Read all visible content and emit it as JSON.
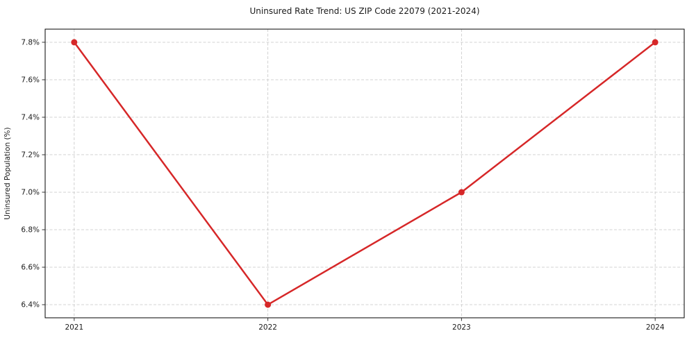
{
  "chart_data": {
    "type": "line",
    "title": "Uninsured Rate Trend: US ZIP Code 22079 (2021-2024)",
    "xlabel": "",
    "ylabel": "Uninsured Population (%)",
    "x": [
      2021,
      2022,
      2023,
      2024
    ],
    "values": [
      7.8,
      6.4,
      7.0,
      7.8
    ],
    "x_tick_labels": [
      "2021",
      "2022",
      "2023",
      "2024"
    ],
    "y_ticks": [
      6.4,
      6.6,
      6.8,
      7.0,
      7.2,
      7.4,
      7.6,
      7.8
    ],
    "y_tick_labels": [
      "6.4%",
      "6.6%",
      "6.8%",
      "7.0%",
      "7.2%",
      "7.4%",
      "7.6%",
      "7.8%"
    ],
    "xlim": [
      2020.85,
      2024.15
    ],
    "ylim": [
      6.33,
      7.87
    ],
    "grid": true,
    "grid_style": "dashed",
    "legend_position": "none",
    "colors": {
      "line": "#d62728",
      "marker": "#d62728",
      "grid": "#cccccc",
      "frame": "#000000",
      "tick": "#333333",
      "text": "#1a1a1a",
      "background": "#ffffff"
    },
    "line_width": 2.5,
    "marker_radius": 4.5
  }
}
